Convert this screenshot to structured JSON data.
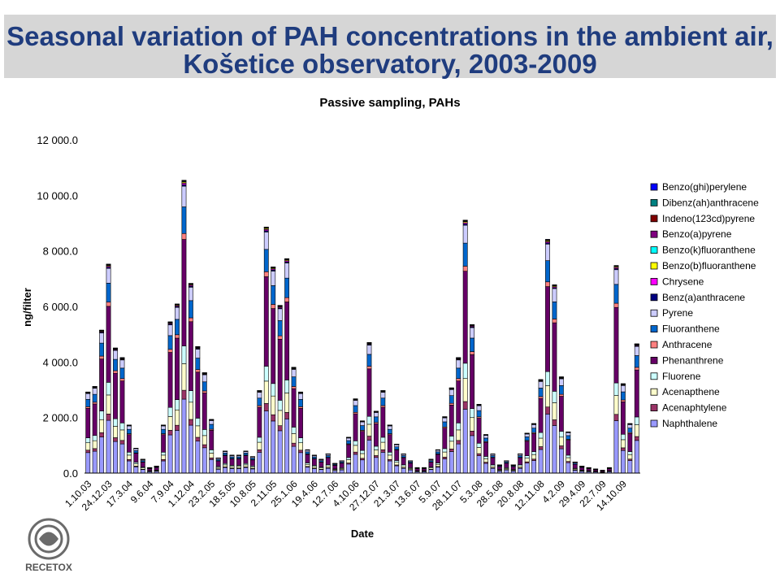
{
  "header": {
    "title_line1": "Seasonal variation of PAH concentrations in the ambient air,",
    "title_line2": "Košetice observatory, 2003-2009"
  },
  "logo": {
    "text": "RECETOX"
  },
  "colors": {
    "banner_bg": "#d6d6d6",
    "title": "#1f3c7e"
  },
  "chart_data": {
    "type": "bar",
    "stacked": true,
    "title": "Passive sampling, PAHs",
    "xlabel": "Date",
    "ylabel": "ng/filter",
    "ylim": [
      0,
      12000
    ],
    "yticks": [
      "0.0",
      "2 000.0",
      "4 000.0",
      "6 000.0",
      "8 000.0",
      "10 000.0",
      "12 000.0"
    ],
    "grid": false,
    "legend_position": "right",
    "xtick_labels": [
      "1.10.03",
      "24.12.03",
      "17.3.04",
      "9.6.04",
      "7.9.04",
      "1.12.04",
      "23.2.05",
      "18.5.05",
      "10.8.05",
      "2.11.05",
      "25.1.06",
      "19.4.06",
      "12.7.06",
      "4.10.06",
      "27.12.07",
      "21.3.07",
      "13.6.07",
      "5.9.07",
      "28.11.07",
      "5.3.08",
      "28.5.08",
      "20.8.08",
      "12.11.08",
      "4.2.09",
      "29.4.09",
      "22.7.09",
      "14.10.09"
    ],
    "xtick_every": 3,
    "totals": [
      2950,
      3150,
      5200,
      7600,
      4550,
      4200,
      1750,
      900,
      500,
      200,
      250,
      1750,
      5500,
      6150,
      10650,
      6900,
      4600,
      3650,
      1950,
      550,
      800,
      650,
      650,
      800,
      600,
      3000,
      8950,
      7500,
      6100,
      7800,
      3850,
      2950,
      850,
      650,
      500,
      700,
      350,
      450,
      1300,
      2700,
      1900,
      4750,
      2250,
      3000,
      1750,
      1050,
      700,
      450,
      200,
      200,
      500,
      850,
      2050,
      3100,
      4200,
      9200,
      5400,
      2500,
      1400,
      700,
      300,
      450,
      300,
      700,
      1450,
      1800,
      3400,
      8500,
      6850,
      3500,
      1500,
      400,
      250,
      200,
      150,
      100,
      200,
      7550,
      3250,
      1800,
      4700
    ],
    "series": [
      {
        "name": "Naphthalene",
        "color": "#9999ff"
      },
      {
        "name": "Acenaphtylene",
        "color": "#993366"
      },
      {
        "name": "Acenapthene",
        "color": "#ffffcc"
      },
      {
        "name": "Fluorene",
        "color": "#ccffff"
      },
      {
        "name": "Phenanthrene",
        "color": "#660066"
      },
      {
        "name": "Anthracene",
        "color": "#ff8080"
      },
      {
        "name": "Fluoranthene",
        "color": "#0066cc"
      },
      {
        "name": "Pyrene",
        "color": "#ccccff"
      },
      {
        "name": "Benz(a)anthracene",
        "color": "#000080"
      },
      {
        "name": "Chrysene",
        "color": "#ff00ff"
      },
      {
        "name": "Benzo(b)fluoranthene",
        "color": "#ffff00"
      },
      {
        "name": "Benzo(k)fluoranthene",
        "color": "#00ffff"
      },
      {
        "name": "Benzo(a)pyrene",
        "color": "#800080"
      },
      {
        "name": "Indeno(123cd)pyrene",
        "color": "#800000"
      },
      {
        "name": "Dibenz(ah)anthracene",
        "color": "#008080"
      },
      {
        "name": "Benzo(ghi)perylene",
        "color": "#0000ff"
      }
    ],
    "composition_fractions": [
      0.25,
      0.03,
      0.09,
      0.06,
      0.36,
      0.02,
      0.09,
      0.07,
      0.005,
      0.005,
      0.004,
      0.002,
      0.002,
      0.001,
      0.0005,
      0.0005
    ]
  }
}
